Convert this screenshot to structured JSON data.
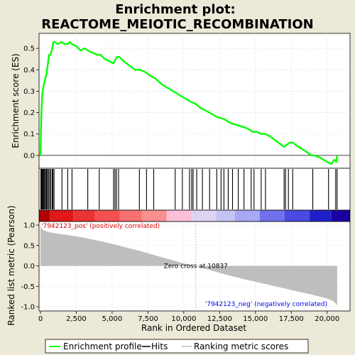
{
  "title_line1": "Enrichment plot:",
  "title_line2": "REACTOME_MEIOTIC_RECOMBINATION",
  "colors": {
    "enrichment": "#00ff00",
    "hits": "#000000",
    "ranking": "#bebebe",
    "pos_label": "#e60000",
    "neg_label": "#0000e6",
    "zero_line": "#bebebe"
  },
  "chart_data": [
    {
      "type": "line",
      "name": "enrichment-profile",
      "ylabel": "Enrichment score (ES)",
      "ylim": [
        -0.06,
        0.57
      ],
      "yticks": [
        "0.0",
        "0.1",
        "0.2",
        "0.3",
        "0.4",
        "0.5"
      ],
      "ytick_values": [
        0.0,
        0.1,
        0.2,
        0.3,
        0.4,
        0.5
      ],
      "grid": true,
      "x": [
        0,
        60,
        120,
        200,
        300,
        420,
        520,
        600,
        700,
        820,
        900,
        1000,
        1200,
        1450,
        1700,
        1900,
        2050,
        2200,
        2500,
        2800,
        3100,
        3300,
        3600,
        4000,
        4200,
        4500,
        4800,
        5100,
        5250,
        5350,
        5500,
        5800,
        6200,
        6600,
        6900,
        7300,
        7700,
        8000,
        8500,
        9000,
        9500,
        10000,
        10500,
        10837,
        11200,
        11800,
        12300,
        12800,
        13300,
        13800,
        14300,
        14600,
        14800,
        15100,
        15400,
        15700,
        16000,
        16400,
        16800,
        17000,
        17200,
        17400,
        17600,
        18000,
        18500,
        18900,
        19100,
        19500,
        20000,
        20300,
        20500,
        20650,
        20700
      ],
      "y": [
        0.0,
        0.18,
        0.28,
        0.32,
        0.35,
        0.38,
        0.43,
        0.47,
        0.47,
        0.5,
        0.53,
        0.53,
        0.52,
        0.53,
        0.52,
        0.52,
        0.53,
        0.52,
        0.51,
        0.49,
        0.5,
        0.49,
        0.48,
        0.47,
        0.47,
        0.45,
        0.44,
        0.43,
        0.45,
        0.46,
        0.46,
        0.44,
        0.42,
        0.4,
        0.4,
        0.39,
        0.37,
        0.36,
        0.33,
        0.31,
        0.29,
        0.27,
        0.25,
        0.24,
        0.22,
        0.2,
        0.18,
        0.17,
        0.15,
        0.14,
        0.13,
        0.12,
        0.11,
        0.11,
        0.1,
        0.1,
        0.09,
        0.07,
        0.05,
        0.04,
        0.05,
        0.06,
        0.06,
        0.04,
        0.02,
        0.0,
        0.0,
        -0.01,
        -0.03,
        -0.04,
        -0.02,
        -0.03,
        0.0
      ]
    },
    {
      "type": "scatter",
      "name": "hits",
      "x": [
        30,
        80,
        130,
        180,
        230,
        290,
        350,
        420,
        480,
        560,
        640,
        720,
        820,
        870,
        950,
        1500,
        1900,
        2200,
        3300,
        4100,
        5100,
        5200,
        5300,
        5450,
        6900,
        7400,
        7900,
        9400,
        9900,
        10400,
        10550,
        10650,
        10900,
        11300,
        11800,
        12300,
        12600,
        12800,
        13100,
        13400,
        13800,
        14200,
        14700,
        14900,
        15400,
        15700,
        17000,
        17100,
        17300,
        17600,
        19000,
        20100,
        20600,
        20700
      ]
    },
    {
      "type": "area",
      "name": "ranking-metric",
      "xlabel": "Rank in Ordered Dataset",
      "ylabel": "Ranked list metric (Pearson)",
      "ylim": [
        -1.0,
        1.0
      ],
      "yticks": [
        "-1.0",
        "-0.5",
        "0.0",
        "0.5",
        "1.0"
      ],
      "ytick_values": [
        -1.0,
        -0.5,
        0.0,
        0.5,
        1.0
      ],
      "xlim": [
        0,
        21500
      ],
      "xticks": [
        "0",
        "2,500",
        "5,000",
        "7,500",
        "10,000",
        "12,500",
        "15,000",
        "17,500",
        "20,000"
      ],
      "xtick_values": [
        0,
        2500,
        5000,
        7500,
        10000,
        12500,
        15000,
        17500,
        20000
      ],
      "x": [
        0,
        100,
        300,
        700,
        1200,
        2000,
        3000,
        4000,
        5000,
        6000,
        7000,
        8000,
        9000,
        10000,
        10837,
        12000,
        13000,
        14000,
        15000,
        16000,
        17000,
        18000,
        19000,
        20000,
        20400,
        20600,
        20700
      ],
      "y": [
        0.98,
        0.9,
        0.86,
        0.82,
        0.79,
        0.75,
        0.69,
        0.62,
        0.54,
        0.45,
        0.36,
        0.26,
        0.16,
        0.06,
        0.0,
        -0.12,
        -0.22,
        -0.31,
        -0.39,
        -0.47,
        -0.55,
        -0.63,
        -0.71,
        -0.8,
        -0.86,
        -0.92,
        -0.97
      ]
    }
  ],
  "zero_cross": "Zero cross at 10837",
  "zero_cross_rank": 10837,
  "pos_label": "'7942123_pos' (positively correlated)",
  "neg_label": "'7942123_neg' (negatively correlated)",
  "heat_stops": [
    {
      "to": 0.035,
      "color": "#b00000"
    },
    {
      "to": 0.11,
      "color": "#e01818"
    },
    {
      "to": 0.18,
      "color": "#ea3434"
    },
    {
      "to": 0.26,
      "color": "#f45050"
    },
    {
      "to": 0.33,
      "color": "#f87070"
    },
    {
      "to": 0.41,
      "color": "#f99090"
    },
    {
      "to": 0.49,
      "color": "#fbc0d8"
    },
    {
      "to": 0.57,
      "color": "#e0d4f4"
    },
    {
      "to": 0.63,
      "color": "#c4c4f4"
    },
    {
      "to": 0.71,
      "color": "#a8a8f4"
    },
    {
      "to": 0.79,
      "color": "#7070ec"
    },
    {
      "to": 0.87,
      "color": "#4a4ae0"
    },
    {
      "to": 0.94,
      "color": "#2020c8"
    },
    {
      "to": 1.0,
      "color": "#1a00a0"
    }
  ],
  "legend": [
    {
      "label": "Enrichment profile",
      "kind": "line"
    },
    {
      "label": "Hits",
      "kind": "hit"
    },
    {
      "label": "Ranking metric scores",
      "kind": "rank"
    }
  ]
}
